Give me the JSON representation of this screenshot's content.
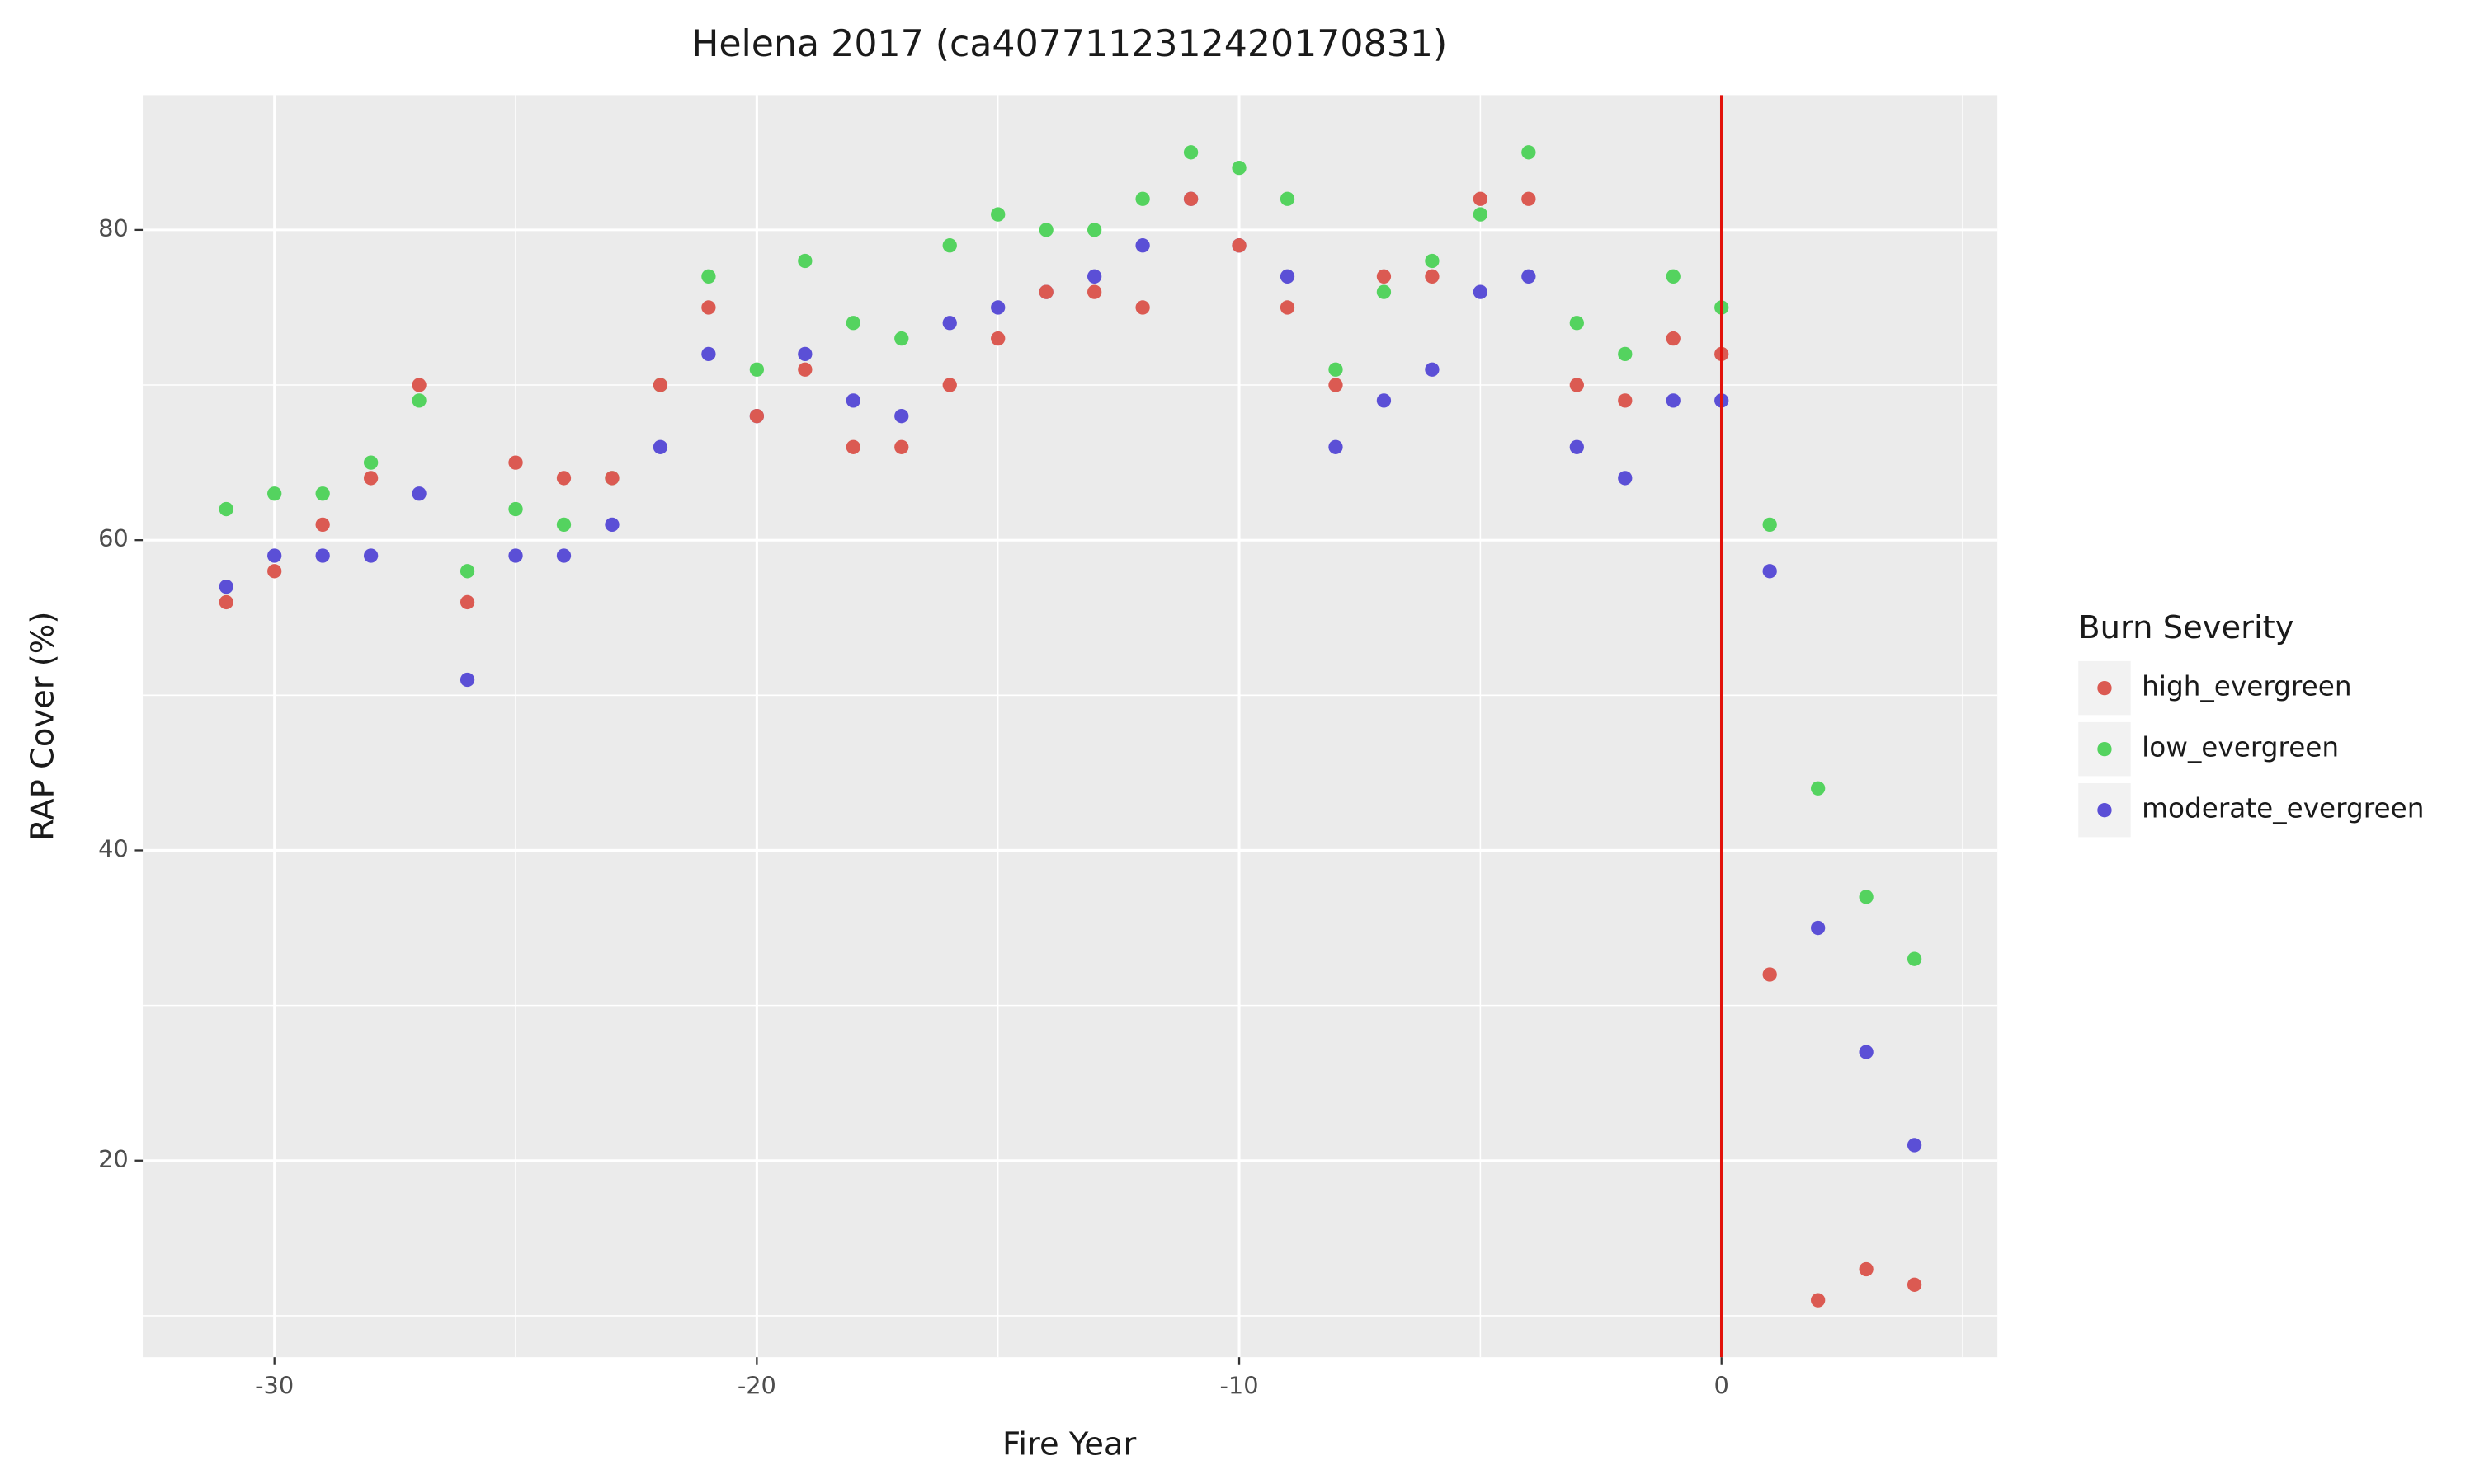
{
  "chart_data": {
    "type": "scatter",
    "title": "Helena 2017 (ca4077112312420170831)",
    "x_label": "Fire Year",
    "y_label": "RAP Cover (%)",
    "legend_title": "Burn Severity",
    "legend_position": "right",
    "xlim": [
      -32.73,
      5.72
    ],
    "ylim": [
      7.33,
      88.69
    ],
    "xticks": [
      -30,
      -20,
      -10,
      0
    ],
    "yticks": [
      20,
      40,
      60,
      80
    ],
    "grid": true,
    "minor_grid": true,
    "vline": {
      "x": 0,
      "color": "#e3120b"
    },
    "series": [
      {
        "name": "high_evergreen",
        "color": "#db5a52",
        "x": [
          -31,
          -30,
          -29,
          -28,
          -27,
          -26,
          -25,
          -24,
          -23,
          -22,
          -21,
          -20,
          -19,
          -18,
          -17,
          -16,
          -15,
          -14,
          -13,
          -12,
          -11,
          -10,
          -9,
          -8,
          -7,
          -6,
          -5,
          -4,
          -3,
          -2,
          -1,
          0,
          1,
          2,
          3,
          4
        ],
        "values": [
          56,
          58,
          61,
          64,
          70,
          56,
          65,
          64,
          64,
          70,
          75,
          68,
          71,
          66,
          66,
          70,
          73,
          76,
          76,
          75,
          82,
          79,
          75,
          70,
          77,
          77,
          82,
          82,
          70,
          69,
          73,
          72,
          32,
          11,
          13,
          12
        ]
      },
      {
        "name": "low_evergreen",
        "color": "#54d35f",
        "x": [
          -31,
          -30,
          -29,
          -28,
          -27,
          -26,
          -25,
          -24,
          -23,
          -22,
          -21,
          -20,
          -19,
          -18,
          -17,
          -16,
          -15,
          -14,
          -13,
          -12,
          -11,
          -10,
          -9,
          -8,
          -7,
          -6,
          -5,
          -4,
          -3,
          -2,
          -1,
          0,
          1,
          2,
          3,
          4
        ],
        "values": [
          62,
          63,
          63,
          65,
          69,
          58,
          62,
          61,
          64,
          70,
          77,
          71,
          78,
          74,
          73,
          79,
          81,
          80,
          80,
          82,
          85,
          84,
          82,
          71,
          76,
          78,
          81,
          85,
          74,
          72,
          77,
          75,
          61,
          44,
          37,
          33
        ]
      },
      {
        "name": "moderate_evergreen",
        "color": "#5b4fd6",
        "x": [
          -31,
          -30,
          -29,
          -28,
          -27,
          -26,
          -25,
          -24,
          -23,
          -22,
          -21,
          -20,
          -19,
          -18,
          -17,
          -16,
          -15,
          -14,
          -13,
          -12,
          -11,
          -10,
          -9,
          -8,
          -7,
          -6,
          -5,
          -4,
          -3,
          -2,
          -1,
          0,
          1,
          2,
          3,
          4
        ],
        "values": [
          57,
          59,
          59,
          59,
          63,
          51,
          59,
          59,
          61,
          66,
          72,
          68,
          72,
          69,
          68,
          74,
          75,
          76,
          77,
          79,
          82,
          79,
          77,
          66,
          69,
          71,
          76,
          77,
          66,
          64,
          69,
          69,
          58,
          35,
          27,
          21
        ]
      }
    ]
  }
}
